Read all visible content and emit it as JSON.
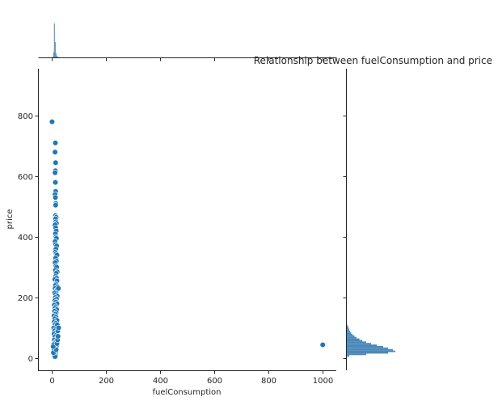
{
  "chart_data": {
    "type": "scatter",
    "kind": "jointplot",
    "title": "Relationship between fuelConsumption and price",
    "xlabel": "fuelConsumption",
    "ylabel": "price",
    "xlim": [
      -50,
      1050
    ],
    "ylim": [
      -40,
      955
    ],
    "xticks": [
      0,
      200,
      400,
      600,
      800,
      1000
    ],
    "yticks": [
      0,
      200,
      400,
      600,
      800
    ],
    "xtick_labels": [
      "0",
      "200",
      "400",
      "600",
      "800",
      "1000"
    ],
    "ytick_labels": [
      "0",
      "200",
      "400",
      "600",
      "800"
    ],
    "grid": false,
    "point_color": "#1f77b4",
    "point_edge": "#ffffff",
    "hist_color": "#4a88b8",
    "marginal_x": {
      "bin_edges": [
        3,
        6,
        9,
        12,
        15,
        18,
        21,
        24,
        27,
        30
      ],
      "counts": [
        0.02,
        0.15,
        1.0,
        0.45,
        0.12,
        0.04,
        0.02,
        0.01,
        0.005
      ]
    },
    "marginal_y": {
      "bin_edges": [
        5,
        10,
        15,
        20,
        25,
        30,
        35,
        40,
        45,
        50,
        55,
        60,
        65,
        70,
        75,
        80,
        85,
        90,
        95,
        100,
        105,
        110
      ],
      "counts": [
        0.05,
        0.4,
        0.85,
        1.0,
        0.95,
        0.85,
        0.75,
        0.62,
        0.5,
        0.4,
        0.32,
        0.26,
        0.2,
        0.16,
        0.12,
        0.09,
        0.07,
        0.05,
        0.04,
        0.03,
        0.02
      ]
    },
    "points": [
      [
        2,
        780
      ],
      [
        14,
        710
      ],
      [
        13,
        680
      ],
      [
        15,
        645
      ],
      [
        14,
        618
      ],
      [
        13,
        612
      ],
      [
        14,
        580
      ],
      [
        15,
        550
      ],
      [
        13,
        540
      ],
      [
        14,
        530
      ],
      [
        16,
        510
      ],
      [
        15,
        505
      ],
      [
        14,
        470
      ],
      [
        17,
        465
      ],
      [
        15,
        460
      ],
      [
        16,
        450
      ],
      [
        18,
        445
      ],
      [
        13,
        440
      ],
      [
        15,
        430
      ],
      [
        17,
        420
      ],
      [
        14,
        410
      ],
      [
        16,
        400
      ],
      [
        18,
        395
      ],
      [
        13,
        385
      ],
      [
        15,
        375
      ],
      [
        19,
        370
      ],
      [
        16,
        360
      ],
      [
        14,
        350
      ],
      [
        17,
        345
      ],
      [
        20,
        340
      ],
      [
        15,
        330
      ],
      [
        18,
        320
      ],
      [
        13,
        315
      ],
      [
        16,
        305
      ],
      [
        19,
        300
      ],
      [
        14,
        290
      ],
      [
        21,
        285
      ],
      [
        17,
        280
      ],
      [
        15,
        270
      ],
      [
        18,
        265
      ],
      [
        12,
        260
      ],
      [
        20,
        255
      ],
      [
        16,
        245
      ],
      [
        14,
        240
      ],
      [
        22,
        235
      ],
      [
        13,
        230
      ],
      [
        19,
        225
      ],
      [
        17,
        220
      ],
      [
        11,
        215
      ],
      [
        15,
        210
      ],
      [
        21,
        205
      ],
      [
        14,
        200
      ],
      [
        18,
        195
      ],
      [
        12,
        190
      ],
      [
        16,
        185
      ],
      [
        20,
        180
      ],
      [
        10,
        175
      ],
      [
        15,
        170
      ],
      [
        13,
        165
      ],
      [
        19,
        160
      ],
      [
        11,
        155
      ],
      [
        17,
        150
      ],
      [
        14,
        145
      ],
      [
        9,
        140
      ],
      [
        16,
        135
      ],
      [
        12,
        130
      ],
      [
        20,
        125
      ],
      [
        10,
        120
      ],
      [
        15,
        115
      ],
      [
        13,
        110
      ],
      [
        18,
        105
      ],
      [
        8,
        100
      ],
      [
        14,
        95
      ],
      [
        11,
        90
      ],
      [
        17,
        85
      ],
      [
        9,
        80
      ],
      [
        16,
        75
      ],
      [
        12,
        70
      ],
      [
        19,
        65
      ],
      [
        10,
        60
      ],
      [
        15,
        55
      ],
      [
        13,
        50
      ],
      [
        8,
        45
      ],
      [
        18,
        40
      ],
      [
        11,
        35
      ],
      [
        14,
        30
      ],
      [
        9,
        25
      ],
      [
        16,
        20
      ],
      [
        12,
        15
      ],
      [
        10,
        10
      ],
      [
        15,
        8
      ],
      [
        13,
        5
      ],
      [
        7,
        18
      ],
      [
        17,
        28
      ],
      [
        6,
        38
      ],
      [
        20,
        48
      ],
      [
        22,
        60
      ],
      [
        24,
        72
      ],
      [
        23,
        90
      ],
      [
        21,
        110
      ],
      [
        25,
        230
      ],
      [
        26,
        100
      ],
      [
        1000,
        44
      ]
    ]
  }
}
